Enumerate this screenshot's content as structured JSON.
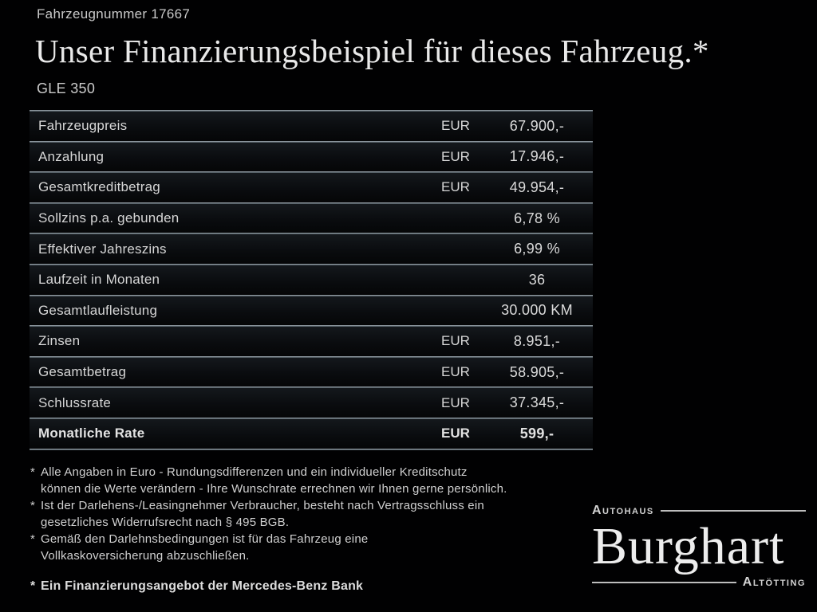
{
  "header": {
    "vehicle_number": "Fahrzeugnummer 17667",
    "title": "Unser Finanzierungsbeispiel für dieses Fahrzeug.*",
    "model": "GLE 350"
  },
  "table": {
    "rows": [
      {
        "label": "Fahrzeugpreis",
        "currency": "EUR",
        "value": "67.900,-",
        "bold": false
      },
      {
        "label": "Anzahlung",
        "currency": "EUR",
        "value": "17.946,-",
        "bold": false
      },
      {
        "label": "Gesamtkreditbetrag",
        "currency": "EUR",
        "value": "49.954,-",
        "bold": false
      },
      {
        "label": "Sollzins p.a. gebunden",
        "currency": "",
        "value": "6,78 %",
        "bold": false
      },
      {
        "label": "Effektiver Jahreszins",
        "currency": "",
        "value": "6,99 %",
        "bold": false
      },
      {
        "label": "Laufzeit in Monaten",
        "currency": "",
        "value": "36",
        "bold": false
      },
      {
        "label": "Gesamtlaufleistung",
        "currency": "",
        "value": "30.000 KM",
        "bold": false
      },
      {
        "label": "Zinsen",
        "currency": "EUR",
        "value": "8.951,-",
        "bold": false
      },
      {
        "label": "Gesamtbetrag",
        "currency": "EUR",
        "value": "58.905,-",
        "bold": false
      },
      {
        "label": "Schlussrate",
        "currency": "EUR",
        "value": "37.345,-",
        "bold": false
      },
      {
        "label": "Monatliche Rate",
        "currency": "EUR",
        "value": "599,-",
        "bold": true
      }
    ]
  },
  "footnotes": [
    {
      "marker": "*",
      "lines": [
        "Alle Angaben in Euro - Rundungsdifferenzen und ein individueller Kreditschutz",
        "können die Werte verändern - Ihre Wunschrate errechnen wir Ihnen gerne persönlich."
      ]
    },
    {
      "marker": "*",
      "lines": [
        "Ist der Darlehens-/Leasingnehmer Verbraucher, besteht nach Vertragsschluss ein",
        "gesetzliches Widerrufsrecht nach § 495 BGB."
      ]
    },
    {
      "marker": "*",
      "lines": [
        "Gemäß den Darlehnsbedingungen ist für das Fahrzeug eine",
        "Vollkaskoversicherung abzuschließen."
      ]
    }
  ],
  "financing_note": {
    "marker": "*",
    "text": "Ein Finanzierungsangebot der Mercedes-Benz Bank"
  },
  "logo": {
    "top": "Autohaus",
    "name": "Burghart",
    "bottom": "Altötting"
  },
  "colors": {
    "background": "#010102",
    "text": "#d6d6d6",
    "title": "#e9e9e9",
    "divider_light": "#a4adb4",
    "divider_dark": "#38434a",
    "logo_rule": "#bdbdbd"
  }
}
